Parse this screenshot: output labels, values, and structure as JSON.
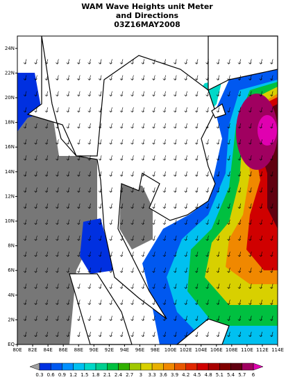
{
  "title": [
    "WAM Wave Heights unit Meter",
    "and Directions",
    "03Z16MAY2008"
  ],
  "map": {
    "lon_range": [
      80,
      114
    ],
    "lat_range": [
      0,
      25
    ],
    "lon_ticks": [
      {
        "value": 80,
        "label": "80E"
      },
      {
        "value": 82,
        "label": "82E"
      },
      {
        "value": 84,
        "label": "84E"
      },
      {
        "value": 86,
        "label": "86E"
      },
      {
        "value": 88,
        "label": "88E"
      },
      {
        "value": 90,
        "label": "90E"
      },
      {
        "value": 92,
        "label": "92E"
      },
      {
        "value": 94,
        "label": "94E"
      },
      {
        "value": 96,
        "label": "96E"
      },
      {
        "value": 98,
        "label": "98E"
      },
      {
        "value": 100,
        "label": "100E"
      },
      {
        "value": 102,
        "label": "102E"
      },
      {
        "value": 104,
        "label": "104E"
      },
      {
        "value": 106,
        "label": "106E"
      },
      {
        "value": 108,
        "label": "108E"
      },
      {
        "value": 110,
        "label": "110E"
      },
      {
        "value": 112,
        "label": "112E"
      },
      {
        "value": 114,
        "label": "114E"
      }
    ],
    "lat_ticks": [
      {
        "value": 0,
        "label": "EQ"
      },
      {
        "value": 2,
        "label": "2N"
      },
      {
        "value": 4,
        "label": "4N"
      },
      {
        "value": 6,
        "label": "6N"
      },
      {
        "value": 8,
        "label": "8N"
      },
      {
        "value": 10,
        "label": "10N"
      },
      {
        "value": 12,
        "label": "12N"
      },
      {
        "value": 14,
        "label": "14N"
      },
      {
        "value": 16,
        "label": "16N"
      },
      {
        "value": 18,
        "label": "18N"
      },
      {
        "value": 20,
        "label": "20N"
      },
      {
        "value": 22,
        "label": "22N"
      },
      {
        "value": 24,
        "label": "24N"
      }
    ]
  },
  "colorbar": {
    "levels": [
      0.3,
      0.6,
      0.9,
      1.2,
      1.5,
      1.8,
      2.1,
      2.4,
      2.7,
      3,
      3.3,
      3.6,
      3.9,
      4.2,
      4.5,
      4.8,
      5.1,
      5.4,
      5.7,
      6
    ],
    "colors": [
      "#a0a0a0",
      "#0030e0",
      "#0058f0",
      "#0090ff",
      "#00c0f0",
      "#00d8c8",
      "#00d090",
      "#00c040",
      "#30b000",
      "#a0c800",
      "#d8d000",
      "#e8b000",
      "#f08800",
      "#e85800",
      "#e02800",
      "#d00000",
      "#a80000",
      "#800000",
      "#600010",
      "#a00060",
      "#e000b0"
    ]
  }
}
